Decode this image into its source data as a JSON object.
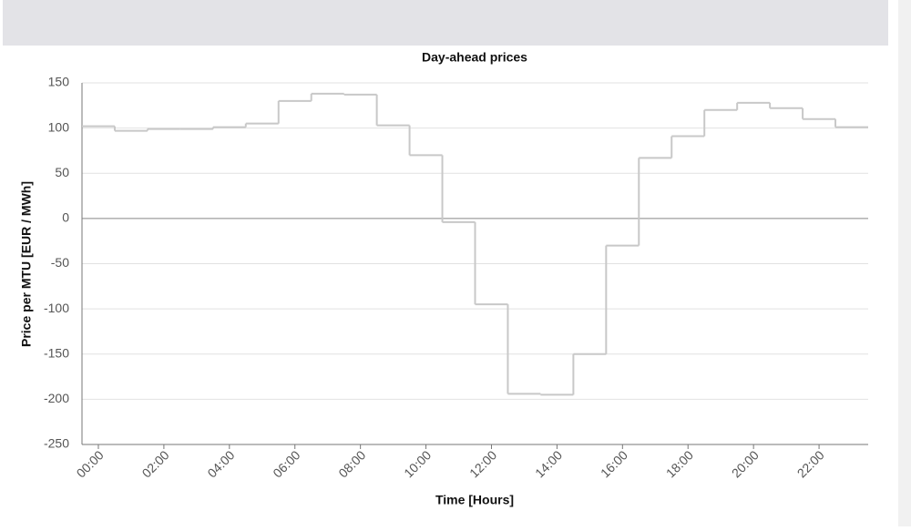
{
  "chart_data": {
    "type": "step",
    "title": "Day-ahead prices",
    "x_label": "Time [Hours]",
    "y_label": "Price per MTU [EUR / MWh]",
    "categories": [
      "00:00",
      null,
      "02:00",
      null,
      "04:00",
      null,
      "06:00",
      null,
      "08:00",
      null,
      "10:00",
      null,
      "12:00",
      null,
      "14:00",
      null,
      "16:00",
      null,
      "18:00",
      null,
      "20:00",
      null,
      "22:00",
      null
    ],
    "values": [
      102,
      97,
      99,
      99,
      101,
      105,
      130,
      138,
      137,
      103,
      70,
      -4,
      -95,
      -194,
      -195,
      -150,
      -30,
      67,
      91,
      120,
      128,
      122,
      110,
      101
    ],
    "color": "#c8c8c8",
    "ylim": [
      -250,
      150
    ],
    "yticks": [
      -250,
      -200,
      -150,
      -100,
      -50,
      0,
      50,
      100,
      150
    ],
    "grid": true
  }
}
